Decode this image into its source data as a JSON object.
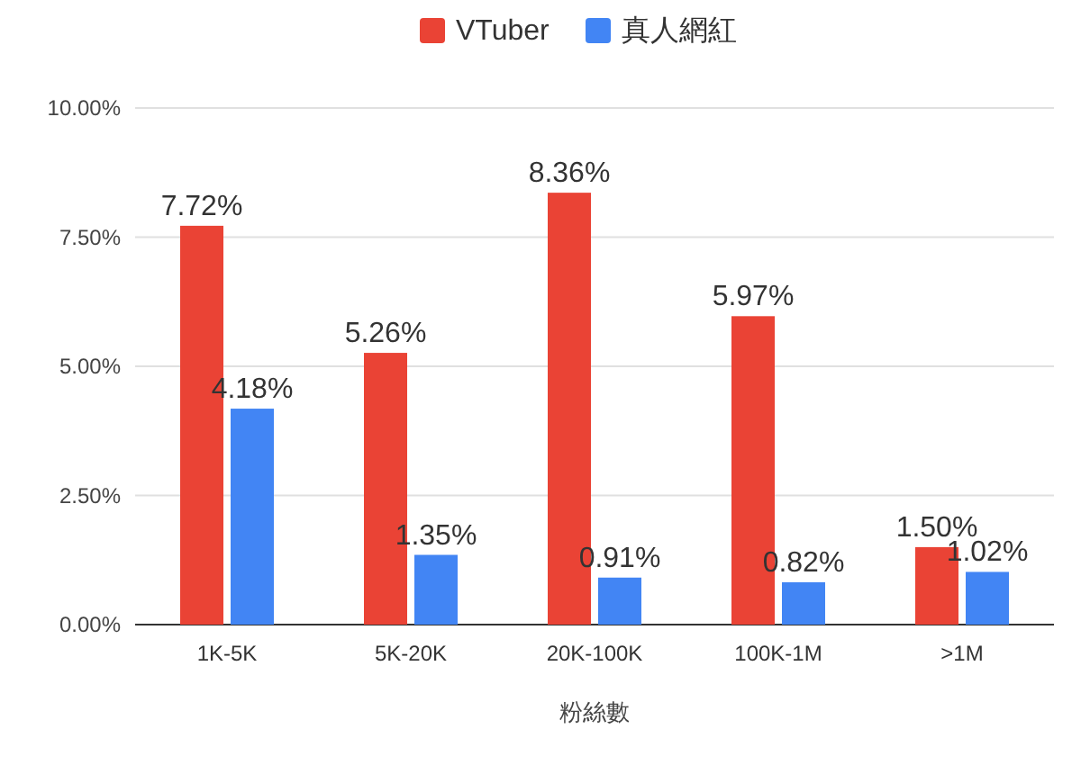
{
  "chart_data": {
    "type": "bar",
    "xlabel": "粉絲數",
    "categories": [
      "1K-5K",
      "5K-20K",
      "20K-100K",
      "100K-1M",
      ">1M"
    ],
    "series": [
      {
        "name": "VTuber",
        "color": "#ea4335",
        "values": [
          7.72,
          5.26,
          8.36,
          5.97,
          1.5
        ],
        "value_labels": [
          "7.72%",
          "5.26%",
          "8.36%",
          "5.97%",
          "1.50%"
        ]
      },
      {
        "name": "真人網紅",
        "color": "#4285f4",
        "values": [
          4.18,
          1.35,
          0.91,
          0.82,
          1.02
        ],
        "value_labels": [
          "4.18%",
          "1.35%",
          "0.91%",
          "0.82%",
          "1.02%"
        ]
      }
    ],
    "ylim": [
      0,
      10
    ],
    "yticks": [
      {
        "value": 0,
        "label": "0.00%"
      },
      {
        "value": 2.5,
        "label": "2.50%"
      },
      {
        "value": 5,
        "label": "5.00%"
      },
      {
        "value": 7.5,
        "label": "7.50%"
      },
      {
        "value": 10,
        "label": "10.00%"
      }
    ],
    "grid": "y",
    "legend": "top"
  }
}
